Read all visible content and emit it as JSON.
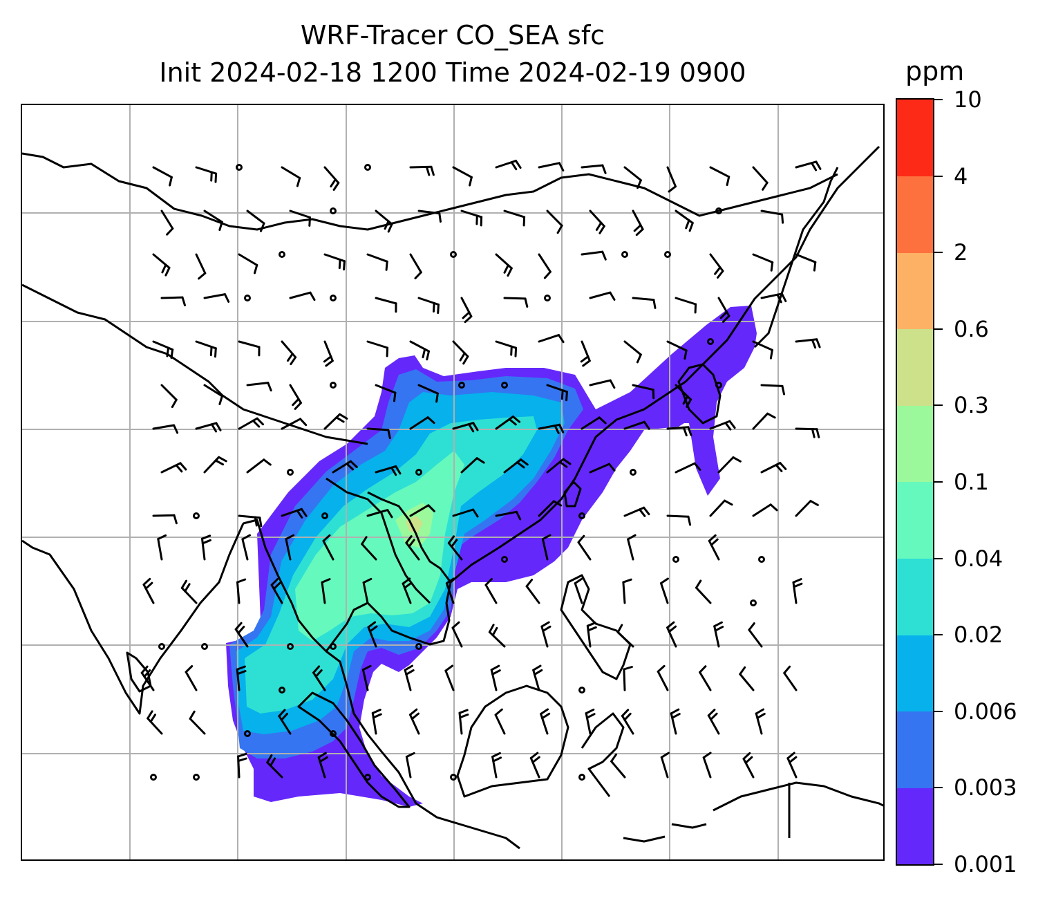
{
  "title": {
    "line1": "WRF-Tracer CO_SEA sfc",
    "line2": "Init 2024-02-18 1200 Time 2024-02-19 0900"
  },
  "colorbar": {
    "units": "ppm",
    "ticks": [
      "10",
      "4",
      "2",
      "0.6",
      "0.3",
      "0.1",
      "0.04",
      "0.02",
      "0.006",
      "0.003",
      "0.001"
    ],
    "colors": [
      "#6528fb",
      "#3575f2",
      "#06b1ec",
      "#2ee0d4",
      "#66f9bd",
      "#9bf99b",
      "#cde08a",
      "#fdb165",
      "#fd713e",
      "#fd2a18"
    ]
  },
  "map": {
    "gridlines": true,
    "coastline_color": "#000000",
    "wind_barb_color": "#000000"
  }
}
